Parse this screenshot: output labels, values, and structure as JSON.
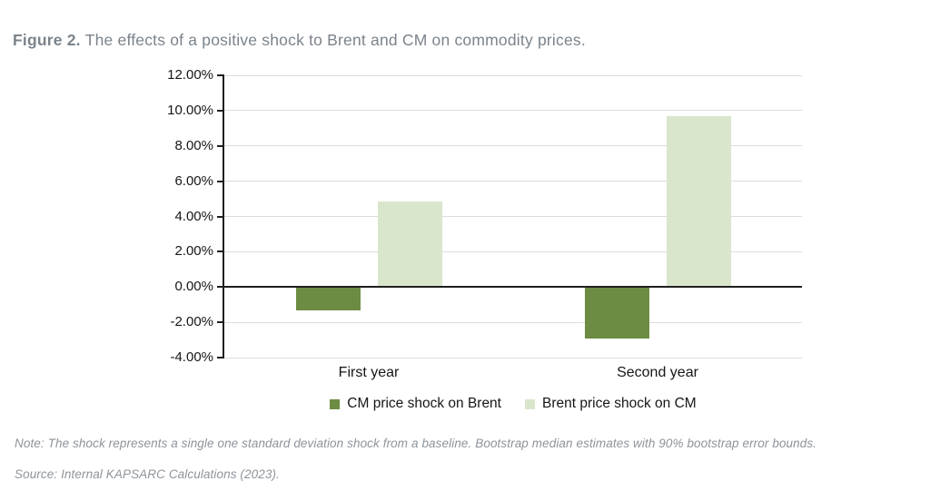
{
  "figure": {
    "label": "Figure 2.",
    "caption": "The effects of a positive shock to Brent and CM on commodity prices."
  },
  "chart_data": {
    "type": "bar",
    "title": "The effects of a positive shock to Brent and CM on commodity prices",
    "categories": [
      "First year",
      "Second year"
    ],
    "series": [
      {
        "name": "CM price shock on Brent",
        "color": "#6d8c43",
        "values": [
          -1.3,
          -2.9
        ]
      },
      {
        "name": "Brent price shock on CM",
        "color": "#d9e6cc",
        "values": [
          4.83,
          9.7
        ]
      }
    ],
    "ylim": [
      -4,
      12
    ],
    "yticks": [
      {
        "value": 12,
        "label": "12.00%"
      },
      {
        "value": 10,
        "label": "10.00%"
      },
      {
        "value": 8,
        "label": "8.00%"
      },
      {
        "value": 6,
        "label": "6.00%"
      },
      {
        "value": 4,
        "label": "4.00%"
      },
      {
        "value": 2,
        "label": "2.00%"
      },
      {
        "value": 0,
        "label": "0.00%"
      },
      {
        "value": -2,
        "label": "-2.00%"
      },
      {
        "value": -4,
        "label": "-4.00%"
      }
    ],
    "grid": true,
    "legend_position": "bottom",
    "xlabel": "",
    "ylabel": ""
  },
  "note": "Note: The shock represents a single one standard deviation shock from a baseline. Bootstrap median estimates with 90% bootstrap error bounds.",
  "source": "Source: Internal KAPSARC Calculations (2023)."
}
